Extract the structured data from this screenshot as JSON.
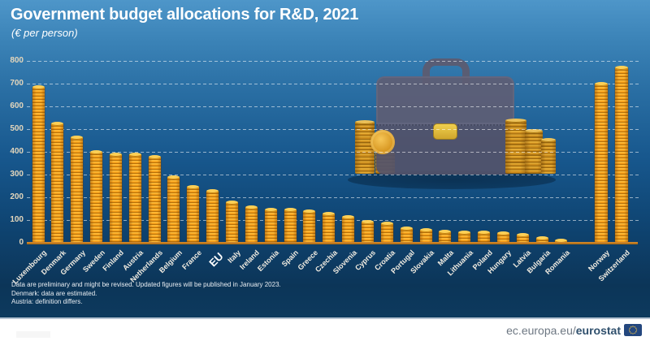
{
  "header": {
    "title": "Government budget allocations for R&D, 2021",
    "subtitle": "(€ per person)"
  },
  "chart_data": {
    "type": "bar",
    "style": "coin-stack pictorial bars",
    "title": "Government budget allocations for R&D, 2021",
    "unit": "€ per person",
    "ylim": [
      0,
      800
    ],
    "yticks": [
      0,
      100,
      200,
      300,
      400,
      500,
      600,
      700,
      800
    ],
    "grid": "horizontal dashed white lines",
    "legend": "none",
    "categories": [
      "Luxembourg",
      "Denmark",
      "Germany",
      "Sweden",
      "Finland",
      "Austria",
      "Netherlands",
      "Belgium",
      "France",
      "EU",
      "Italy",
      "Ireland",
      "Estonia",
      "Spain",
      "Greece",
      "Czechia",
      "Slovenia",
      "Cyprus",
      "Croatia",
      "Portugal",
      "Slovakia",
      "Malta",
      "Lithuania",
      "Poland",
      "Hungary",
      "Latvia",
      "Bulgaria",
      "Romania"
    ],
    "values": [
      687,
      526,
      463,
      401,
      391,
      388,
      377,
      289,
      248,
      228,
      180,
      157,
      148,
      146,
      139,
      130,
      115,
      94,
      86,
      66,
      57,
      51,
      47,
      46,
      44,
      35,
      20,
      12
    ],
    "highlight_category": "EU",
    "efta": {
      "categories": [
        "Norway",
        "Switzerland"
      ],
      "values": [
        701,
        772
      ]
    }
  },
  "notes": [
    "Data are preliminary and might be revised. Updated figures will be published in January 2023.",
    "Denmark: data are estimated.",
    "Austria: definition differs."
  ],
  "footer": {
    "url_prefix": "ec.europa.eu/",
    "brand": "eurostat",
    "logo": "eu-flag-icon"
  },
  "illustration": "briefcase-with-coin-stacks",
  "colors": {
    "background_top": "#4e96c9",
    "background_bottom": "#0d3a5e",
    "coin_bright": "#f49d18",
    "coin_highlight": "#ffd056",
    "coin_shadow": "#b56f08",
    "baseline_orange": "#c17a1e",
    "ytick_text": "#e3d6bc",
    "label_text": "#ffffff",
    "briefcase": "#53536a",
    "clasp_gold": "#e3c23c",
    "footer_url_gray": "#6d7782",
    "footer_brand_navy": "#30506d",
    "flag_blue": "#24477e",
    "flag_stars": "#f7c948"
  }
}
